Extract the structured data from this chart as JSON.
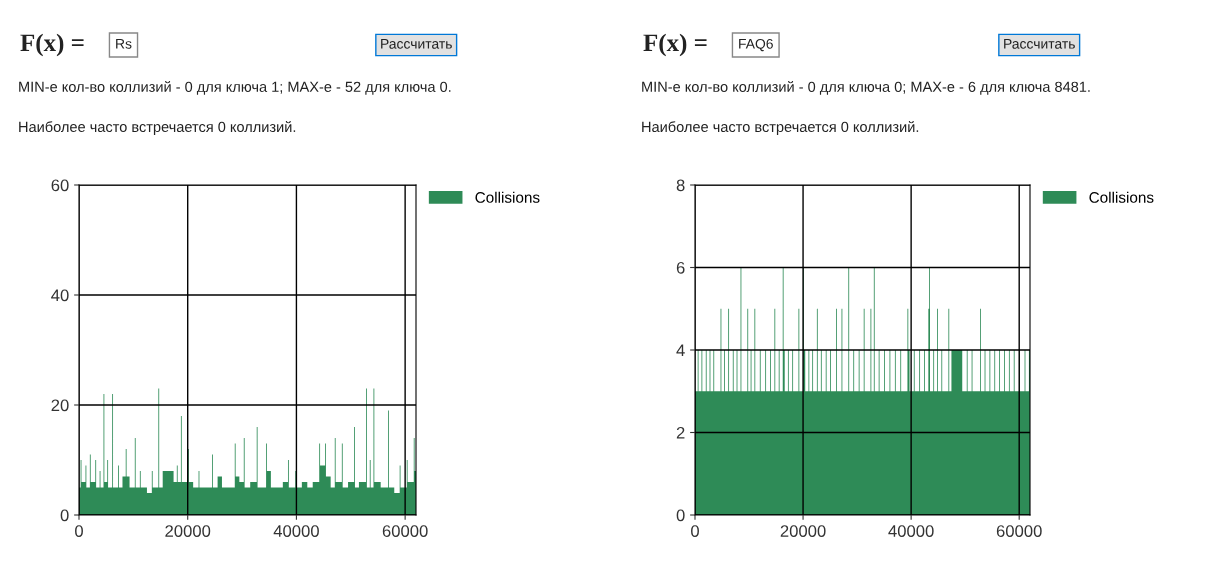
{
  "chart_data": [
    {
      "type": "area",
      "annotations": [
        "F(x) =",
        "Rs",
        "Рассчитать",
        "MIN-е кол-во коллизий - 0 для ключа 1; MAX-е - 52 для ключа 0.",
        "Наиболее часто встречается 0 коллизий."
      ],
      "x": [
        0,
        300,
        450,
        1200,
        1350,
        2000,
        2150,
        3000,
        3150,
        3800,
        3950,
        4510,
        4660,
        5200,
        5350,
        6110,
        6260,
        7200,
        7350,
        8000,
        8600,
        8750,
        9300,
        10270,
        10420,
        11200,
        11350,
        12500,
        13400,
        13550,
        14600,
        14750,
        15400,
        16500,
        17400,
        18000,
        18150,
        18750,
        18900,
        20060,
        20210,
        21000,
        22000,
        22150,
        23000,
        24500,
        24650,
        25500,
        26300,
        27500,
        28660,
        28810,
        29500,
        30320,
        30470,
        31500,
        32700,
        32850,
        34420,
        34570,
        35300,
        36500,
        37500,
        38450,
        38600,
        39800,
        39950,
        41000,
        42000,
        43000,
        44200,
        44350,
        45280,
        45430,
        46300,
        47060,
        47210,
        48360,
        48510,
        49500,
        50620,
        50770,
        51500,
        52810,
        52960,
        53500,
        53650,
        54180,
        54330,
        55500,
        56850,
        57000,
        58000,
        59000,
        59150,
        60300,
        60450,
        61590,
        61740
      ],
      "series": [
        {
          "name": "Collisions",
          "color": "#2e8b57",
          "values": [
            5,
            10,
            6,
            9,
            5,
            11,
            6,
            10,
            5,
            8,
            5,
            22,
            6,
            10,
            5,
            22,
            5,
            9,
            5,
            7,
            12,
            7,
            5,
            14,
            5,
            8,
            5,
            4,
            8,
            5,
            23,
            5,
            8,
            8,
            6,
            9,
            6,
            18,
            6,
            12,
            6,
            5,
            8,
            5,
            5,
            11,
            5,
            7,
            5,
            5,
            13,
            7,
            6,
            14,
            5,
            6,
            16,
            5,
            13,
            8,
            5,
            5,
            6,
            10,
            5,
            8,
            5,
            6,
            5,
            6,
            13,
            9,
            13,
            7,
            5,
            14,
            6,
            13,
            5,
            6,
            16,
            5,
            6,
            23,
            5,
            10,
            5,
            23,
            6,
            5,
            19,
            5,
            4,
            9,
            5,
            10,
            6,
            14,
            8
          ]
        }
      ],
      "xlim": [
        0,
        62000
      ],
      "xticks": [
        0,
        20000,
        40000,
        60000
      ],
      "ylim": [
        0,
        60
      ],
      "yticks": [
        0,
        20,
        40,
        60
      ],
      "grid": true,
      "legend": "top right"
    },
    {
      "type": "area",
      "annotations": [
        "F(x) =",
        "FAQ6",
        "Рассчитать",
        "MIN-е кол-во коллизий - 0 для ключа 0; MAX-е - 6 для ключа 8481.",
        "Наиболее часто встречается 0 коллизий."
      ],
      "x": [
        0,
        500,
        650,
        1200,
        1350,
        2000,
        2150,
        2700,
        2850,
        3400,
        3550,
        4730,
        4880,
        5400,
        5550,
        6150,
        6300,
        7000,
        7150,
        7700,
        7850,
        8430,
        8580,
        9690,
        9840,
        10300,
        10450,
        11000,
        11150,
        12000,
        12150,
        13000,
        13150,
        13900,
        14050,
        14700,
        14850,
        15500,
        15650,
        16240,
        16390,
        16600,
        17200,
        17350,
        18000,
        18150,
        19150,
        19300,
        20000,
        20150,
        20400,
        21000,
        21150,
        21700,
        21850,
        22560,
        22710,
        23300,
        23450,
        24200,
        24350,
        25000,
        25150,
        26100,
        26250,
        27120,
        27270,
        28380,
        28530,
        29300,
        29450,
        30300,
        30450,
        31230,
        31380,
        32480,
        32630,
        33100,
        33250,
        34000,
        34150,
        35000,
        35150,
        36000,
        36150,
        37000,
        37150,
        38000,
        38150,
        39320,
        39470,
        39700,
        40500,
        40650,
        41500,
        41650,
        42400,
        42550,
        43190,
        43340,
        43490,
        44100,
        44250,
        44790,
        44940,
        45600,
        45750,
        46900,
        47050,
        47460,
        49460,
        50300,
        50450,
        51200,
        51350,
        52760,
        52910,
        53600,
        53750,
        54500,
        54650,
        55400,
        55550,
        56300,
        56450,
        57200,
        57350,
        58100,
        58250,
        59000,
        59150,
        60000,
        60150,
        61000,
        61150,
        61800
      ],
      "series": [
        {
          "name": "Collisions",
          "color": "#2e8b57",
          "values": [
            3,
            4,
            3,
            4,
            3,
            4,
            3,
            4,
            3,
            4,
            3,
            5,
            3,
            4,
            3,
            5,
            3,
            4,
            3,
            4,
            3,
            6,
            3,
            5,
            3,
            4,
            3,
            5,
            3,
            4,
            3,
            4,
            3,
            4,
            3,
            5,
            3,
            4,
            3,
            6,
            4,
            3,
            4,
            3,
            4,
            3,
            5,
            3,
            6,
            4,
            3,
            4,
            3,
            4,
            3,
            5,
            3,
            4,
            3,
            4,
            3,
            4,
            3,
            5,
            3,
            5,
            3,
            6,
            3,
            4,
            3,
            4,
            3,
            5,
            3,
            5,
            3,
            6,
            3,
            4,
            3,
            4,
            3,
            4,
            3,
            4,
            3,
            4,
            3,
            5,
            4,
            3,
            4,
            3,
            4,
            3,
            4,
            3,
            5,
            6,
            3,
            4,
            3,
            5,
            3,
            4,
            3,
            5,
            3,
            4,
            3,
            4,
            3,
            4,
            3,
            5,
            3,
            4,
            3,
            4,
            3,
            4,
            3,
            4,
            3,
            4,
            3,
            4,
            3,
            4,
            3,
            4,
            3,
            4,
            3,
            4
          ]
        }
      ],
      "xlim": [
        0,
        62000
      ],
      "xticks": [
        0,
        20000,
        40000,
        60000
      ],
      "ylim": [
        0,
        8
      ],
      "yticks": [
        0,
        2,
        4,
        6,
        8
      ],
      "grid": true,
      "legend": "top right"
    }
  ]
}
